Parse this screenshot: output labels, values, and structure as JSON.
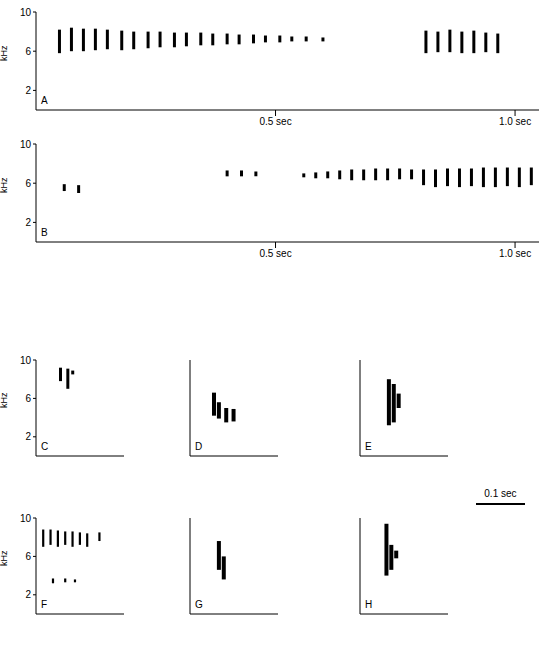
{
  "chart_data": [
    {
      "type": "spectrogram",
      "title": "A",
      "y_label": "kHz",
      "color": "#000000",
      "tick_labels": true,
      "xlim": [
        0,
        1.05
      ],
      "xticks": [
        {
          "value": 0.5,
          "label": "0.5 sec"
        },
        {
          "value": 1.0,
          "label": "1.0 sec"
        }
      ],
      "ylim": [
        0,
        10
      ],
      "yticks": [
        2,
        6,
        10
      ],
      "x": [
        0.05,
        0.075,
        0.1,
        0.125,
        0.15,
        0.18,
        0.205,
        0.235,
        0.26,
        0.29,
        0.315,
        0.345,
        0.37,
        0.4,
        0.425,
        0.455,
        0.48,
        0.51,
        0.535,
        0.565,
        0.6,
        0.815,
        0.84,
        0.865,
        0.89,
        0.915,
        0.94,
        0.965
      ],
      "values": [
        [
          5.8,
          8.2
        ],
        [
          6.0,
          8.4
        ],
        [
          6.0,
          8.3
        ],
        [
          6.1,
          8.3
        ],
        [
          6.2,
          8.2
        ],
        [
          6.1,
          8.1
        ],
        [
          6.2,
          8.0
        ],
        [
          6.3,
          8.0
        ],
        [
          6.4,
          8.0
        ],
        [
          6.4,
          7.9
        ],
        [
          6.5,
          7.9
        ],
        [
          6.6,
          7.9
        ],
        [
          6.6,
          7.8
        ],
        [
          6.7,
          7.8
        ],
        [
          6.7,
          7.7
        ],
        [
          6.8,
          7.7
        ],
        [
          6.9,
          7.6
        ],
        [
          6.9,
          7.6
        ],
        [
          7.0,
          7.5
        ],
        [
          7.0,
          7.5
        ],
        [
          7.0,
          7.4
        ],
        [
          5.8,
          8.1
        ],
        [
          5.9,
          8.0
        ],
        [
          5.9,
          8.2
        ],
        [
          5.8,
          8.0
        ],
        [
          5.8,
          8.1
        ],
        [
          5.9,
          7.9
        ],
        [
          5.8,
          7.8
        ]
      ]
    },
    {
      "type": "spectrogram",
      "title": "B",
      "y_label": "kHz",
      "color": "#000000",
      "tick_labels": true,
      "xlim": [
        0,
        1.05
      ],
      "xticks": [
        {
          "value": 0.5,
          "label": "0.5 sec"
        },
        {
          "value": 1.0,
          "label": "1.0 sec"
        }
      ],
      "ylim": [
        0,
        10
      ],
      "yticks": [
        2,
        6,
        10
      ],
      "x": [
        0.06,
        0.09,
        0.4,
        0.43,
        0.46,
        0.56,
        0.585,
        0.61,
        0.635,
        0.66,
        0.685,
        0.71,
        0.735,
        0.76,
        0.785,
        0.81,
        0.835,
        0.86,
        0.885,
        0.91,
        0.935,
        0.96,
        0.985,
        1.01,
        1.035
      ],
      "values": [
        [
          5.2,
          5.9
        ],
        [
          5.0,
          5.8
        ],
        [
          6.7,
          7.3
        ],
        [
          6.7,
          7.3
        ],
        [
          6.7,
          7.2
        ],
        [
          6.6,
          7.0
        ],
        [
          6.5,
          7.1
        ],
        [
          6.5,
          7.2
        ],
        [
          6.4,
          7.3
        ],
        [
          6.3,
          7.4
        ],
        [
          6.3,
          7.4
        ],
        [
          6.3,
          7.5
        ],
        [
          6.3,
          7.5
        ],
        [
          6.4,
          7.5
        ],
        [
          6.4,
          7.4
        ],
        [
          5.8,
          7.4
        ],
        [
          5.6,
          7.4
        ],
        [
          5.7,
          7.5
        ],
        [
          5.6,
          7.5
        ],
        [
          5.7,
          7.5
        ],
        [
          5.6,
          7.6
        ],
        [
          5.6,
          7.6
        ],
        [
          5.7,
          7.6
        ],
        [
          5.6,
          7.6
        ],
        [
          5.8,
          7.6
        ]
      ]
    },
    {
      "type": "spectrogram",
      "title": "C",
      "y_label": "kHz",
      "color": "#000000",
      "tick_labels": "y",
      "xlim": [
        0,
        0.18
      ],
      "ylim": [
        0,
        10
      ],
      "yticks": [
        2,
        6,
        10
      ],
      "x": [
        0.05,
        0.065,
        0.075
      ],
      "values": [
        [
          7.8,
          9.2
        ],
        [
          7.0,
          9.1
        ],
        [
          8.5,
          8.9
        ]
      ]
    },
    {
      "type": "spectrogram",
      "title": "D",
      "color": "#000000",
      "tick_labels": false,
      "xlim": [
        0,
        0.18
      ],
      "ylim": [
        0,
        10
      ],
      "yticks": [
        2,
        4,
        6,
        8,
        10
      ],
      "x": [
        0.05,
        0.06,
        0.075,
        0.09
      ],
      "values": [
        [
          4.2,
          6.6
        ],
        [
          3.9,
          5.6
        ],
        [
          3.5,
          5.0
        ],
        [
          3.6,
          4.9
        ]
      ]
    },
    {
      "type": "spectrogram",
      "title": "E",
      "color": "#000000",
      "tick_labels": false,
      "xlim": [
        0,
        0.18
      ],
      "ylim": [
        0,
        10
      ],
      "yticks": [
        2,
        4,
        6,
        8,
        10
      ],
      "x": [
        0.06,
        0.07,
        0.08
      ],
      "values": [
        [
          3.2,
          8.0
        ],
        [
          3.5,
          7.5
        ],
        [
          5.0,
          6.5
        ]
      ]
    },
    {
      "type": "spectrogram",
      "title": "F",
      "y_label": "kHz",
      "color": "#000000",
      "tick_labels": "y",
      "xlim": [
        0,
        0.18
      ],
      "ylim": [
        0,
        10
      ],
      "yticks": [
        2,
        6,
        10
      ],
      "x": [
        0.015,
        0.03,
        0.045,
        0.06,
        0.075,
        0.09,
        0.105,
        0.13,
        0.035,
        0.06,
        0.08
      ],
      "values": [
        [
          7.0,
          8.8
        ],
        [
          7.2,
          8.8
        ],
        [
          7.0,
          8.7
        ],
        [
          7.2,
          8.6
        ],
        [
          7.0,
          8.6
        ],
        [
          7.2,
          8.5
        ],
        [
          7.0,
          8.4
        ],
        [
          7.6,
          8.5
        ],
        [
          3.2,
          3.7
        ],
        [
          3.3,
          3.7
        ],
        [
          3.3,
          3.6
        ]
      ]
    },
    {
      "type": "spectrogram",
      "title": "G",
      "color": "#000000",
      "tick_labels": false,
      "xlim": [
        0,
        0.18
      ],
      "ylim": [
        0,
        10
      ],
      "yticks": [
        2,
        4,
        6,
        8,
        10
      ],
      "x": [
        0.06,
        0.07
      ],
      "values": [
        [
          4.6,
          7.6
        ],
        [
          3.6,
          6.0
        ]
      ]
    },
    {
      "type": "spectrogram",
      "title": "H",
      "color": "#000000",
      "tick_labels": false,
      "xlim": [
        0,
        0.18
      ],
      "ylim": [
        0,
        10
      ],
      "yticks": [
        2,
        4,
        6,
        8,
        10
      ],
      "x": [
        0.055,
        0.065,
        0.075
      ],
      "values": [
        [
          4.0,
          9.4
        ],
        [
          4.6,
          7.2
        ],
        [
          5.8,
          6.6
        ]
      ]
    }
  ],
  "scale_bar": {
    "value": 0.1,
    "label": "0.1 sec"
  }
}
